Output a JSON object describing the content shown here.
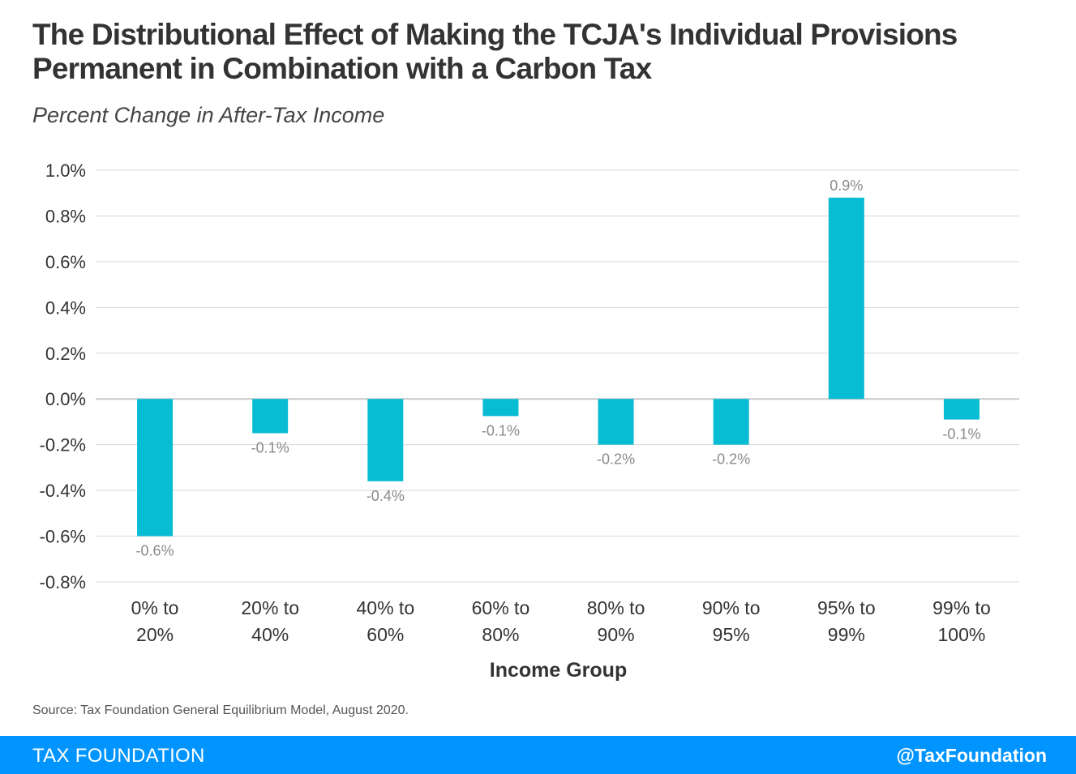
{
  "title_line1": "The Distributional Effect of Making the TCJA's Individual Provisions",
  "title_line2": "Permanent in Combination with a Carbon Tax",
  "subtitle": "Percent Change in After-Tax Income",
  "source": "Source: Tax Foundation General Equilibrium Model, August 2020.",
  "footer": {
    "brand": "TAX FOUNDATION",
    "handle": "@TaxFoundation"
  },
  "colors": {
    "bar": "#08bcd4",
    "footer": "#0094ff",
    "grid": "#d9d9d9"
  },
  "chart_data": {
    "type": "bar",
    "categories": [
      [
        "0% to",
        "20%"
      ],
      [
        "20% to",
        "40%"
      ],
      [
        "40% to",
        "60%"
      ],
      [
        "60% to",
        "80%"
      ],
      [
        "80% to",
        "90%"
      ],
      [
        "90%  to",
        "95%"
      ],
      [
        "95% to",
        "99%"
      ],
      [
        "99% to",
        "100%"
      ]
    ],
    "values": [
      -0.6,
      -0.15,
      -0.36,
      -0.075,
      -0.2,
      -0.2,
      0.88,
      -0.09
    ],
    "data_labels": [
      "-0.6%",
      "-0.1%",
      "-0.4%",
      "-0.1%",
      "-0.2%",
      "-0.2%",
      "0.9%",
      "-0.1%"
    ],
    "ylim": [
      -0.8,
      1.0
    ],
    "yticks": [
      1.0,
      0.8,
      0.6,
      0.4,
      0.2,
      0.0,
      -0.2,
      -0.4,
      -0.6,
      -0.8
    ],
    "ytick_labels": [
      "1.0%",
      "0.8%",
      "0.6%",
      "0.4%",
      "0.2%",
      "0.0%",
      "-0.2%",
      "-0.4%",
      "-0.6%",
      "-0.8%"
    ],
    "xlabel": "Income Group",
    "ylabel": "",
    "grid": true
  }
}
